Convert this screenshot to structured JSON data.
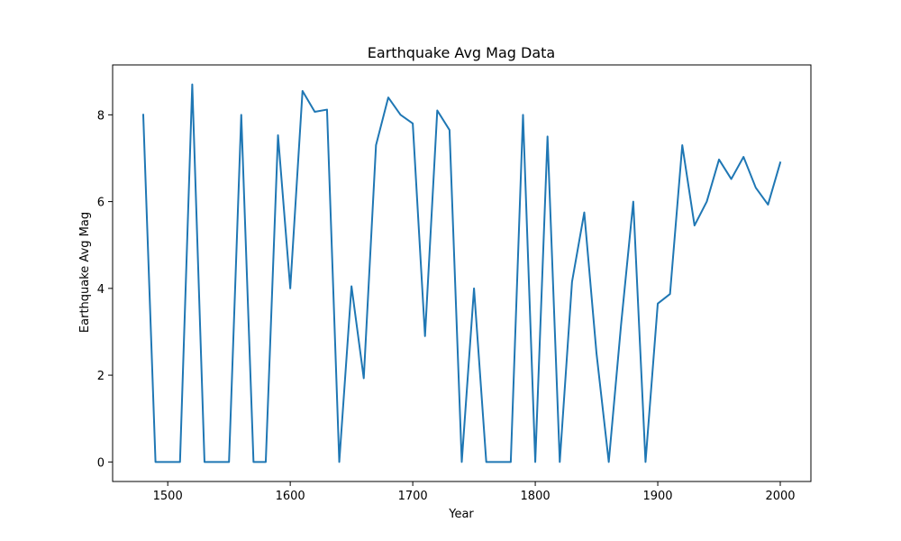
{
  "chart_data": {
    "type": "line",
    "title": "Earthquake Avg Mag Data",
    "xlabel": "Year",
    "ylabel": "Earthquake Avg Mag",
    "xlim": [
      1455,
      2025
    ],
    "ylim": [
      -0.45,
      9.15
    ],
    "xticks": [
      1500,
      1600,
      1700,
      1800,
      1900,
      2000
    ],
    "yticks": [
      0,
      2,
      4,
      6,
      8
    ],
    "grid": false,
    "legend": "none",
    "series": [
      {
        "color": "#1f77b4",
        "x": [
          1480,
          1490,
          1500,
          1510,
          1520,
          1530,
          1540,
          1550,
          1560,
          1570,
          1580,
          1590,
          1600,
          1610,
          1620,
          1630,
          1640,
          1650,
          1660,
          1670,
          1680,
          1690,
          1700,
          1710,
          1720,
          1730,
          1740,
          1750,
          1760,
          1770,
          1780,
          1790,
          1800,
          1810,
          1820,
          1830,
          1840,
          1850,
          1860,
          1870,
          1880,
          1890,
          1900,
          1910,
          1920,
          1930,
          1940,
          1950,
          1960,
          1970,
          1980,
          1990,
          2000
        ],
        "y": [
          8.0,
          0.0,
          0.0,
          0.0,
          8.7,
          0.0,
          0.0,
          0.0,
          8.0,
          0.0,
          0.0,
          7.53,
          4.0,
          8.55,
          8.07,
          8.12,
          0.0,
          4.05,
          1.93,
          7.3,
          8.4,
          8.0,
          7.8,
          2.9,
          8.1,
          7.65,
          0.0,
          4.0,
          0.0,
          0.0,
          0.0,
          8.0,
          0.0,
          7.5,
          0.0,
          4.15,
          5.75,
          2.5,
          0.0,
          3.15,
          6.0,
          0.0,
          3.65,
          3.87,
          7.3,
          5.45,
          6.0,
          6.97,
          6.52,
          7.03,
          6.32,
          5.93,
          6.9
        ]
      }
    ]
  }
}
